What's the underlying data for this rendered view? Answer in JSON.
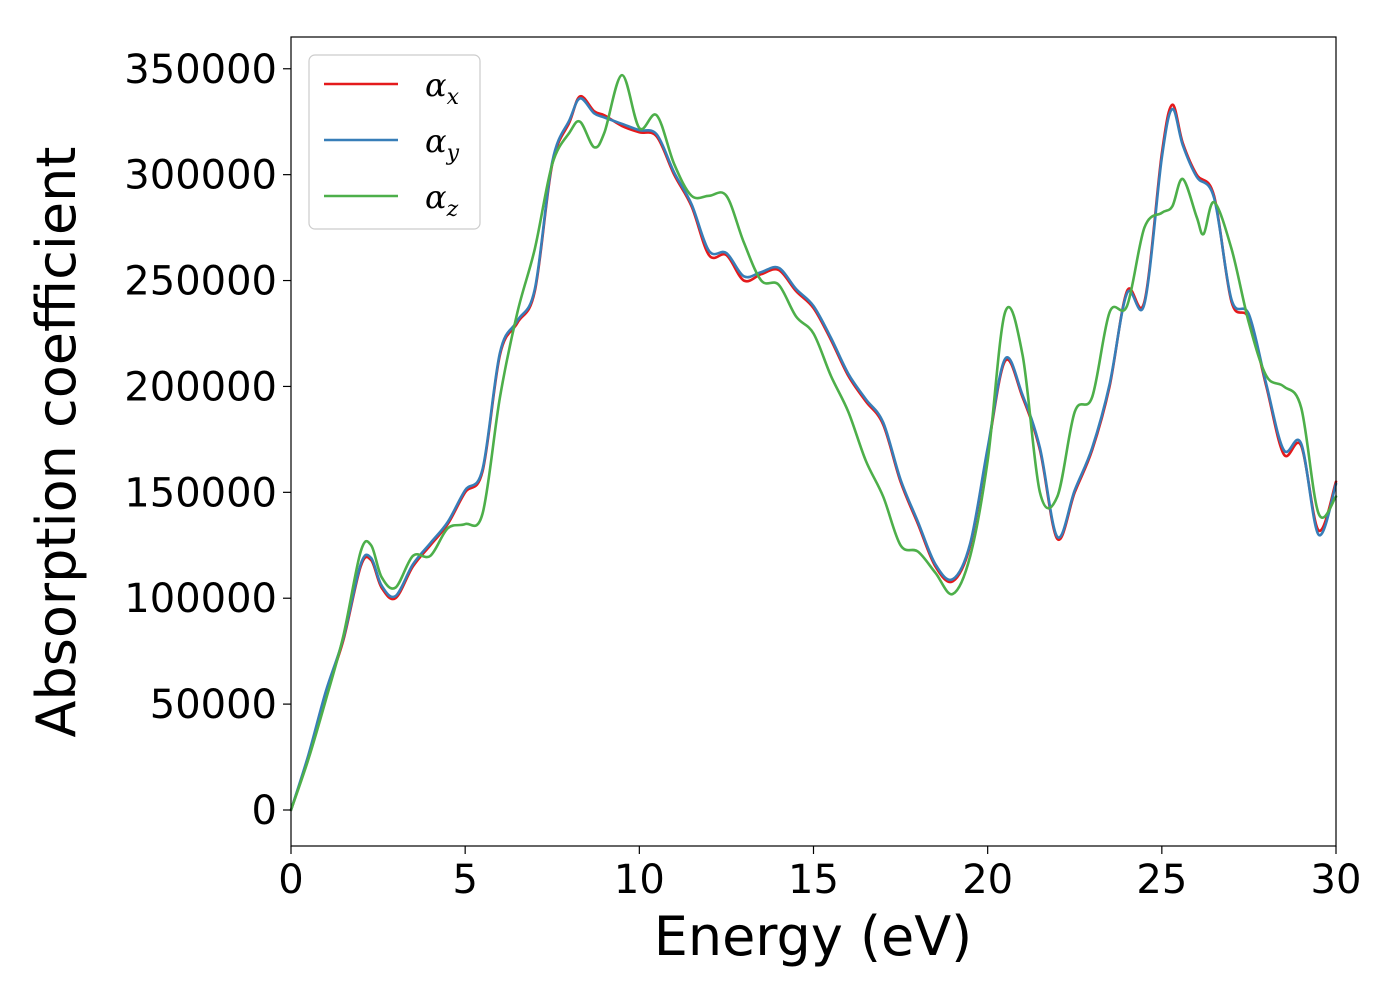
{
  "chart_data": {
    "type": "line",
    "title": "",
    "xlabel": "Energy (eV)",
    "ylabel": "Absorption coefficient",
    "xlim": [
      0,
      30
    ],
    "ylim": [
      -17000,
      365000
    ],
    "xticks": [
      0,
      5,
      10,
      15,
      20,
      25,
      30
    ],
    "xtick_labels": [
      "0",
      "5",
      "10",
      "15",
      "20",
      "25",
      "30"
    ],
    "yticks": [
      0,
      50000,
      100000,
      150000,
      200000,
      250000,
      300000,
      350000
    ],
    "ytick_labels": [
      "0",
      "50000",
      "100000",
      "150000",
      "200000",
      "250000",
      "300000",
      "350000"
    ],
    "grid": false,
    "legend": {
      "placement": "upper-left",
      "entries": [
        {
          "base": "α",
          "sub": "x",
          "color": "#e41a1c"
        },
        {
          "base": "α",
          "sub": "y",
          "color": "#377eb8"
        },
        {
          "base": "α",
          "sub": "z",
          "color": "#4daf4a"
        }
      ]
    },
    "series": [
      {
        "name": "αx",
        "color": "#e41a1c",
        "x": [
          0,
          0.5,
          1.0,
          1.5,
          2.0,
          2.3,
          2.6,
          3.0,
          3.5,
          4.0,
          4.5,
          5.0,
          5.5,
          6.0,
          6.5,
          7.0,
          7.5,
          8.0,
          8.3,
          8.7,
          9.0,
          9.5,
          10.0,
          10.5,
          11.0,
          11.5,
          12.0,
          12.5,
          13.0,
          13.5,
          14.0,
          14.5,
          15.0,
          15.5,
          16.0,
          16.5,
          17.0,
          17.5,
          18.0,
          18.5,
          19.0,
          19.5,
          20.0,
          20.5,
          21.0,
          21.5,
          22.0,
          22.5,
          23.0,
          23.5,
          24.0,
          24.5,
          25.0,
          25.3,
          25.6,
          26.0,
          26.5,
          27.0,
          27.5,
          28.0,
          28.5,
          29.0,
          29.5,
          30.0
        ],
        "values": [
          0,
          25000,
          55000,
          80000,
          115000,
          118000,
          105000,
          100000,
          115000,
          125000,
          135000,
          150000,
          160000,
          215000,
          230000,
          245000,
          305000,
          325000,
          337000,
          330000,
          328000,
          323000,
          320000,
          318000,
          300000,
          285000,
          262000,
          262000,
          250000,
          253000,
          255000,
          245000,
          237000,
          222000,
          205000,
          193000,
          182000,
          155000,
          135000,
          115000,
          108000,
          125000,
          170000,
          212000,
          195000,
          170000,
          128000,
          150000,
          170000,
          200000,
          245000,
          240000,
          310000,
          333000,
          315000,
          300000,
          290000,
          240000,
          232000,
          200000,
          168000,
          172000,
          132000,
          155000
        ]
      },
      {
        "name": "αy",
        "color": "#377eb8",
        "x": [
          0,
          0.5,
          1.0,
          1.5,
          2.0,
          2.3,
          2.6,
          3.0,
          3.5,
          4.0,
          4.5,
          5.0,
          5.5,
          6.0,
          6.5,
          7.0,
          7.5,
          8.0,
          8.3,
          8.7,
          9.0,
          9.5,
          10.0,
          10.5,
          11.0,
          11.5,
          12.0,
          12.5,
          13.0,
          13.5,
          14.0,
          14.5,
          15.0,
          15.5,
          16.0,
          16.5,
          17.0,
          17.5,
          18.0,
          18.5,
          19.0,
          19.5,
          20.0,
          20.5,
          21.0,
          21.5,
          22.0,
          22.5,
          23.0,
          23.5,
          24.0,
          24.5,
          25.0,
          25.3,
          25.6,
          26.0,
          26.5,
          27.0,
          27.5,
          28.0,
          28.5,
          29.0,
          29.5,
          30.0
        ],
        "values": [
          0,
          26000,
          56000,
          81000,
          116000,
          119000,
          106000,
          101000,
          116000,
          126000,
          136000,
          151000,
          161000,
          216000,
          231000,
          246000,
          306000,
          326000,
          336000,
          329000,
          327000,
          324000,
          321000,
          319000,
          301000,
          286000,
          264000,
          263000,
          252000,
          254000,
          256000,
          246000,
          238000,
          223000,
          206000,
          194000,
          183000,
          156000,
          136000,
          116000,
          109000,
          126000,
          171000,
          213000,
          196000,
          171000,
          129000,
          151000,
          171000,
          201000,
          244000,
          239000,
          308000,
          331000,
          314000,
          299000,
          289000,
          241000,
          234000,
          201000,
          170000,
          173000,
          130000,
          154000
        ]
      },
      {
        "name": "αz",
        "color": "#4daf4a",
        "x": [
          0,
          0.5,
          1.0,
          1.5,
          2.0,
          2.3,
          2.6,
          3.0,
          3.5,
          4.0,
          4.5,
          5.0,
          5.5,
          6.0,
          6.5,
          7.0,
          7.5,
          8.0,
          8.3,
          8.7,
          9.0,
          9.5,
          10.0,
          10.5,
          11.0,
          11.5,
          12.0,
          12.5,
          13.0,
          13.5,
          14.0,
          14.5,
          15.0,
          15.5,
          16.0,
          16.5,
          17.0,
          17.5,
          18.0,
          18.5,
          19.0,
          19.5,
          20.0,
          20.5,
          21.0,
          21.5,
          22.0,
          22.5,
          23.0,
          23.5,
          24.0,
          24.5,
          25.0,
          25.3,
          25.6,
          26.0,
          26.2,
          26.5,
          27.0,
          27.5,
          28.0,
          28.5,
          29.0,
          29.5,
          30.0
        ],
        "values": [
          0,
          24000,
          52000,
          82000,
          122000,
          125000,
          110000,
          105000,
          120000,
          120000,
          133000,
          135000,
          140000,
          195000,
          235000,
          265000,
          305000,
          320000,
          325000,
          313000,
          320000,
          347000,
          322000,
          328000,
          305000,
          290000,
          290000,
          290000,
          268000,
          250000,
          248000,
          233000,
          225000,
          205000,
          188000,
          165000,
          148000,
          125000,
          122000,
          112000,
          102000,
          120000,
          165000,
          235000,
          215000,
          150000,
          148000,
          188000,
          195000,
          235000,
          238000,
          275000,
          282000,
          285000,
          298000,
          280000,
          272000,
          287000,
          265000,
          230000,
          205000,
          200000,
          190000,
          140000,
          148000
        ]
      }
    ]
  }
}
